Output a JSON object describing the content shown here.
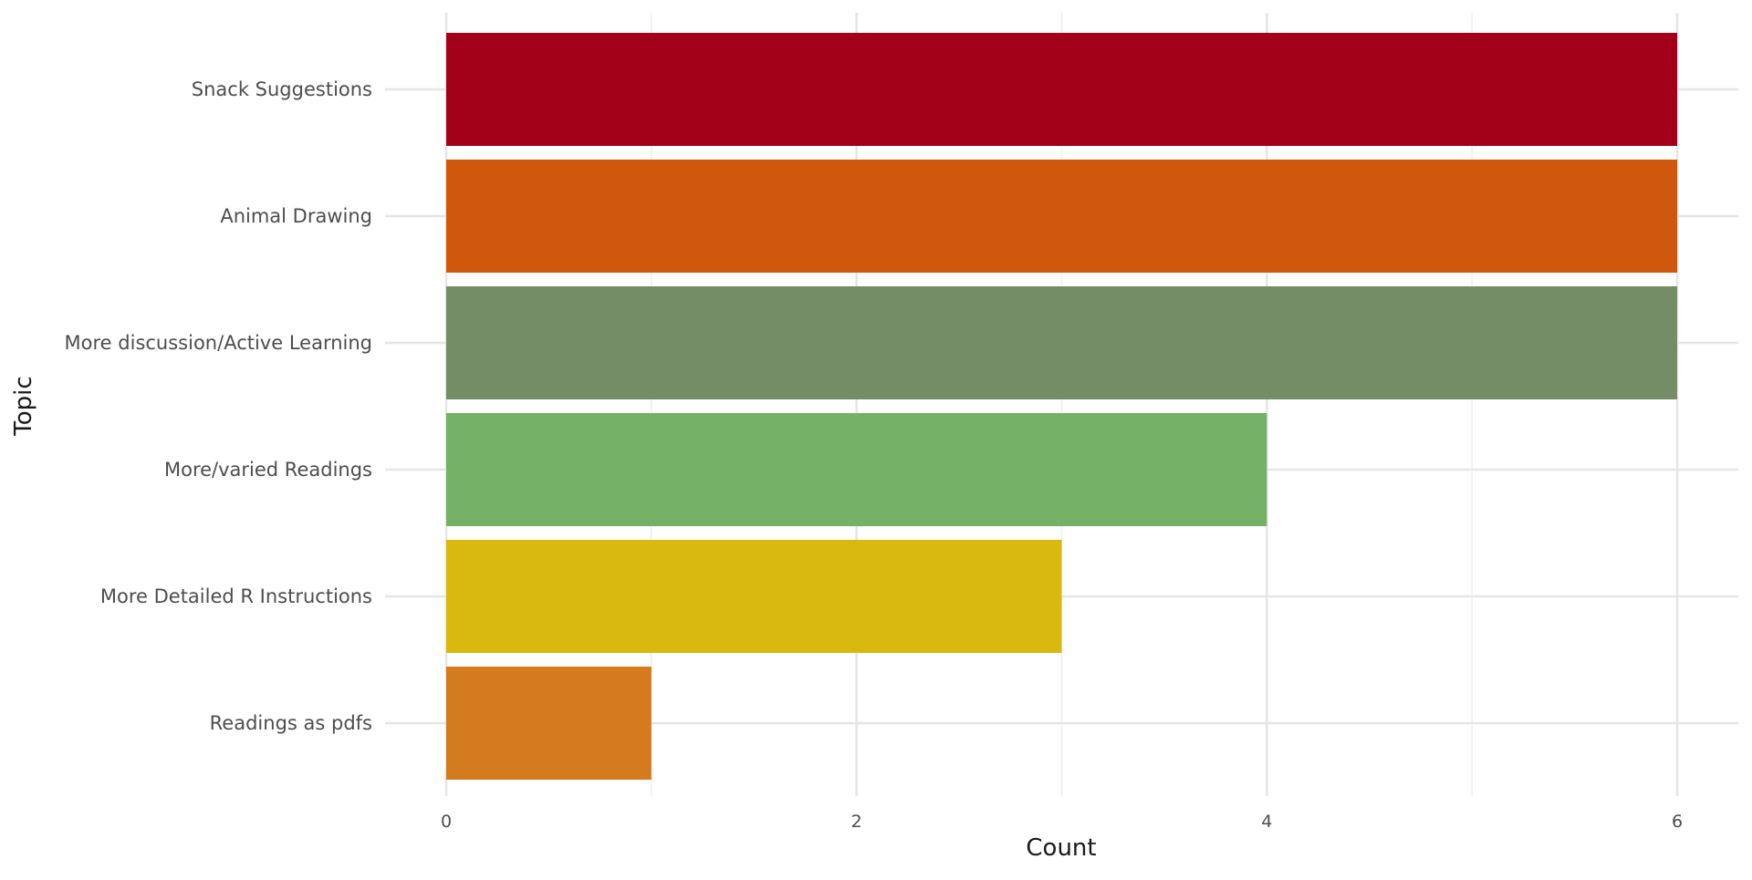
{
  "chart_data": {
    "type": "bar",
    "orientation": "horizontal",
    "categories": [
      "Snack Suggestions",
      "Animal Drawing",
      "More discussion/Active Learning",
      "More/varied Readings",
      "More Detailed R Instructions",
      "Readings as pdfs"
    ],
    "values": [
      6,
      6,
      6,
      4,
      3,
      1
    ],
    "colors": [
      "#A3001A",
      "#D0580D",
      "#758D66",
      "#75B067",
      "#D9B90F",
      "#D47A1F"
    ],
    "xlabel": "Count",
    "ylabel": "Topic",
    "xlim": [
      0,
      6
    ],
    "x_ticks": [
      0,
      2,
      4,
      6
    ],
    "tick_labels": [
      "0",
      "2",
      "4",
      "6"
    ],
    "grid": true,
    "legend": "none"
  }
}
